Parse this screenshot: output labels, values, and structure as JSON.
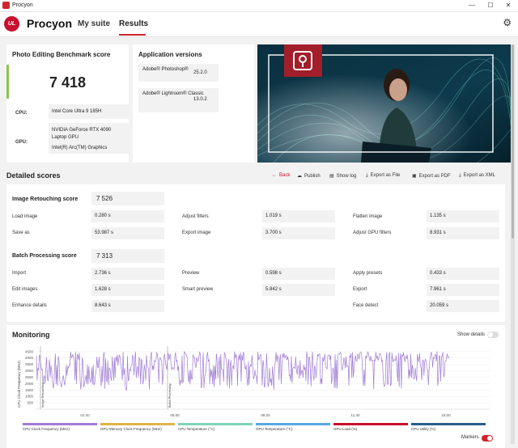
{
  "window": {
    "title": "Procyon",
    "minimize": "—",
    "maximize": "☐",
    "close": "✕"
  },
  "nav": {
    "logo": "UL",
    "brand": "Procyon",
    "tabs": [
      "My suite",
      "Results"
    ],
    "active": "Results"
  },
  "score": {
    "title": "Photo Editing Benchmark score",
    "value": "7 418",
    "cpu_label": "CPU:",
    "cpu": "Intel Core Ultra 9 185H",
    "gpu_label": "GPU:",
    "gpu1": "NVIDIA GeForce RTX 4090 Laptop GPU",
    "gpu2": "Intel(R) Arc(TM) Graphics"
  },
  "apps": {
    "title": "Application versions",
    "items": [
      {
        "name": "Adobe® Photoshop®",
        "version": "25.2.0"
      },
      {
        "name": "Adobe® Lightroom® Classic",
        "version": "13.0.2"
      }
    ]
  },
  "details": {
    "title": "Detailed scores",
    "actions": [
      "Back",
      "Publish",
      "Show log",
      "Export as File",
      "Export as PDF",
      "Export as XML"
    ],
    "retouch": {
      "title": "Image Retouching score",
      "score": "7 526",
      "metrics": [
        {
          "label": "Load image",
          "value": "0.280 s"
        },
        {
          "label": "Adjust filters",
          "value": "1.019 s"
        },
        {
          "label": "Flatten image",
          "value": "1.135 s"
        },
        {
          "label": "Save as",
          "value": "53.987 s"
        },
        {
          "label": "Export image",
          "value": "3.700 s"
        },
        {
          "label": "Adjust GPU filters",
          "value": "8.931 s"
        }
      ]
    },
    "batch": {
      "title": "Batch Processing score",
      "score": "7 313",
      "metrics": [
        {
          "label": "Import",
          "value": "2.736 s"
        },
        {
          "label": "Preview",
          "value": "0.598 s"
        },
        {
          "label": "Apply presets",
          "value": "0.433 s"
        },
        {
          "label": "Edit images",
          "value": "1.628 s"
        },
        {
          "label": "Smart preview",
          "value": "5.842 s"
        },
        {
          "label": "Export",
          "value": "7.961 s"
        },
        {
          "label": "Enhance details",
          "value": "8.643 s"
        },
        {
          "label": "Face detect",
          "value": "20.059 s"
        }
      ]
    }
  },
  "monitoring": {
    "title": "Monitoring",
    "show_details": "Show details",
    "markers": "Markers",
    "markers_on": true,
    "show_details_on": false,
    "legend": [
      {
        "name": "CPU Clock Frequency (MHz)",
        "color": "#a07cd6"
      },
      {
        "name": "GPU Memory Clock Frequency (MHz)",
        "color": "#e0b34a"
      },
      {
        "name": "CPU Temperature (°C)",
        "color": "#7fd4b5"
      },
      {
        "name": "GPU Temperature (°C)",
        "color": "#5aa8e0"
      },
      {
        "name": "GPU Load (%)",
        "color": "#c8102e"
      },
      {
        "name": "CPU Utility (%)",
        "color": "#2a5e8c"
      }
    ]
  },
  "chart_data": {
    "type": "line",
    "ylabel": "CPU Clock Frequency (MHz)",
    "yticks": [
      500,
      1000,
      1500,
      2000,
      2500,
      3000,
      3500,
      4000,
      4500
    ],
    "ylim": [
      0,
      4800
    ],
    "xticks": [
      "01:40",
      "05:00",
      "08:20",
      "11:40",
      "15:00"
    ],
    "markers": [
      "Image Retouching",
      "Batch Processing"
    ],
    "series": [
      {
        "name": "CPU Clock Frequency (MHz)",
        "color": "#a07cd6"
      }
    ]
  }
}
